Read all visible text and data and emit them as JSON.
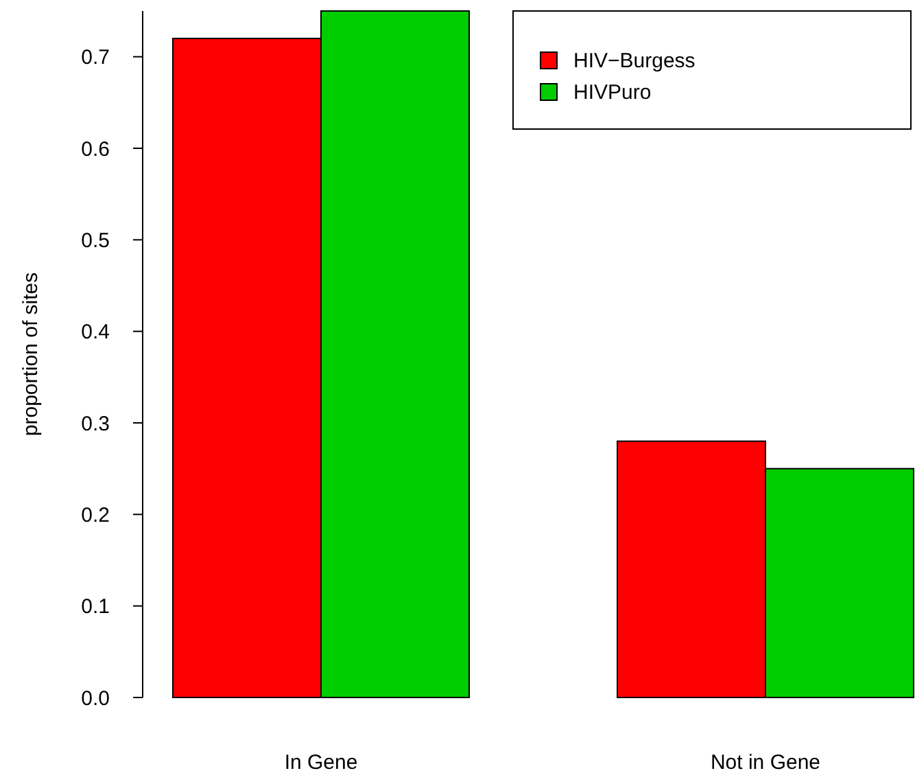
{
  "chart_data": {
    "type": "bar",
    "ylabel": "proportion of sites",
    "categories": [
      "In Gene",
      "Not in Gene"
    ],
    "series": [
      {
        "name": "HIV−Burgess",
        "color": "#ff0000",
        "values": [
          0.72,
          0.28
        ]
      },
      {
        "name": "HIVPuro",
        "color": "#00cd00",
        "values": [
          0.75,
          0.25
        ]
      }
    ],
    "ylim": [
      0,
      0.75
    ],
    "yticks": [
      {
        "value": 0,
        "label": "0.0"
      },
      0.1,
      0.2,
      0.3,
      0.4,
      0.5,
      0.6,
      0.7
    ],
    "legend": "top right",
    "grid": false
  }
}
